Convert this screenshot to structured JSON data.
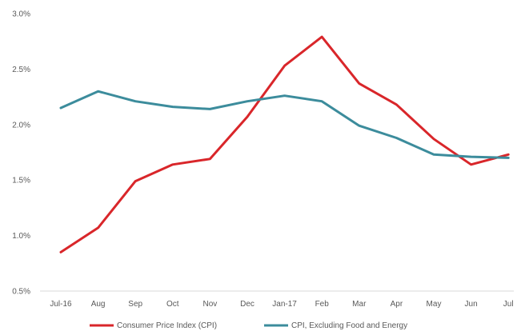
{
  "chart_data": {
    "type": "line",
    "title": "",
    "xlabel": "",
    "ylabel": "",
    "categories": [
      "Jul-16",
      "Aug",
      "Sep",
      "Oct",
      "Nov",
      "Dec",
      "Jan-17",
      "Feb",
      "Mar",
      "Apr",
      "May",
      "Jun",
      "Jul"
    ],
    "y_ticks": [
      "0.5%",
      "1.0%",
      "1.5%",
      "2.0%",
      "2.5%",
      "3.0%"
    ],
    "ylim": [
      0.5,
      3.0
    ],
    "grid": false,
    "legend_position": "bottom",
    "series": [
      {
        "name": "Consumer Price Index (CPI)",
        "color": "#d9262a",
        "values": [
          0.85,
          1.07,
          1.49,
          1.64,
          1.69,
          2.07,
          2.53,
          2.79,
          2.37,
          2.18,
          1.87,
          1.64,
          1.73
        ]
      },
      {
        "name": "CPI, Excluding Food and Energy",
        "color": "#3c8c9c",
        "values": [
          2.15,
          2.3,
          2.21,
          2.16,
          2.14,
          2.21,
          2.26,
          2.21,
          1.99,
          1.88,
          1.73,
          1.71,
          1.7
        ]
      }
    ]
  }
}
